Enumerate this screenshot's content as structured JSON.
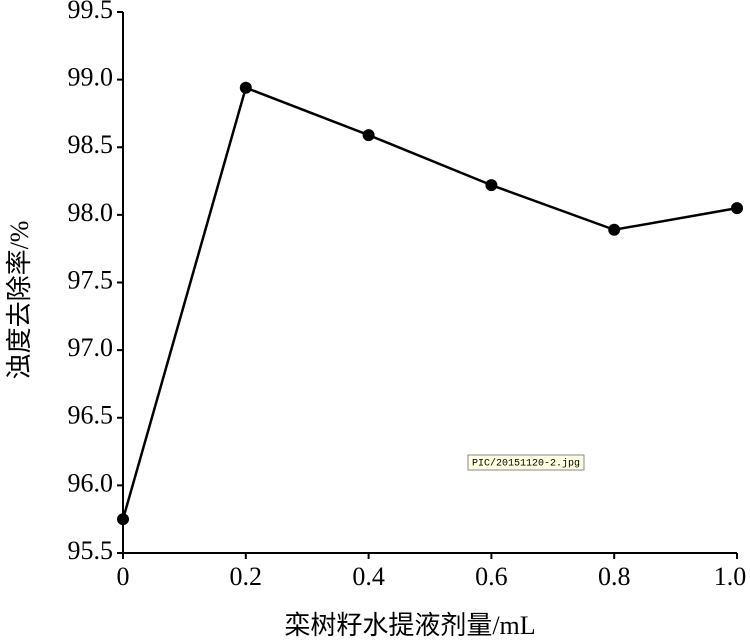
{
  "chart_data": {
    "type": "line",
    "x_label": "栾树籽水提液剂量/mL",
    "y_label": "浊度去除率/%",
    "annotation": "PIC/20151120-2.jpg",
    "x": [
      0,
      0.2,
      0.4,
      0.6,
      0.8,
      1.0
    ],
    "series": [
      {
        "color": "#000000",
        "values": [
          95.75,
          98.94,
          98.59,
          98.22,
          97.89,
          98.05
        ]
      }
    ],
    "xlim": [
      0,
      1.0
    ],
    "xticks": [
      0,
      0.2,
      0.4,
      0.6,
      0.8,
      {
        "value": 1.0,
        "label": "1.0"
      }
    ],
    "ylim": [
      95.5,
      99.5
    ],
    "yticks": [
      95.5,
      {
        "value": 96,
        "label": "96.0"
      },
      96.5,
      {
        "value": 97,
        "label": "97.0"
      },
      97.5,
      {
        "value": 98,
        "label": "98.0"
      },
      98.5,
      {
        "value": 99,
        "label": "99.0"
      },
      99.5
    ],
    "grid": false
  }
}
